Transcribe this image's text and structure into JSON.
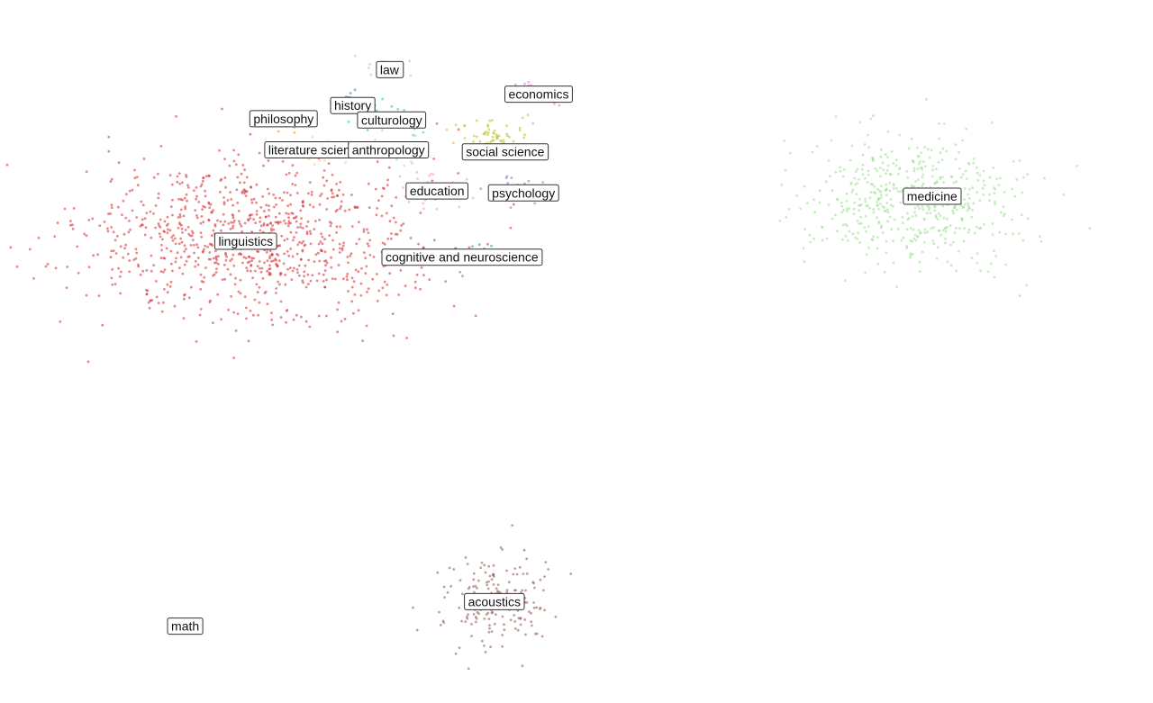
{
  "chart_data": {
    "type": "scatter",
    "title": "",
    "xlabel": "",
    "ylabel": "",
    "grid": false,
    "axes_visible": false,
    "legend": "none",
    "xlim": [
      0,
      100
    ],
    "ylim": [
      0,
      100
    ],
    "clusters": [
      {
        "label": "linguistics",
        "color": "#d62728",
        "center": [
          20.0,
          66.3
        ],
        "spread": [
          14.0,
          11.0
        ]
      },
      {
        "label": "medicine",
        "color": "#98df8a",
        "center": [
          81.0,
          73.0
        ],
        "spread": [
          9.0,
          9.5
        ]
      },
      {
        "label": "acoustics",
        "color": "#8c564b",
        "center": [
          42.5,
          12.0
        ],
        "spread": [
          4.5,
          7.0
        ]
      },
      {
        "label": "economics",
        "color": "#e377c2",
        "center": [
          46.5,
          88.5
        ],
        "spread": [
          2.5,
          2.0
        ]
      },
      {
        "label": "social science",
        "color": "#bcbd22",
        "center": [
          42.5,
          82.0
        ],
        "spread": [
          3.5,
          3.0
        ]
      },
      {
        "label": "psychology",
        "color": "#9467bd",
        "center": [
          45.0,
          74.5
        ],
        "spread": [
          2.5,
          2.0
        ]
      },
      {
        "label": "law",
        "color": "#c5b0d5",
        "center": [
          32.5,
          93.0
        ],
        "spread": [
          2.0,
          1.3
        ]
      },
      {
        "label": "history",
        "color": "#1f77b4",
        "center": [
          29.3,
          87.5
        ],
        "spread": [
          1.5,
          1.5
        ]
      },
      {
        "label": "culturology",
        "color": "#17becf",
        "center": [
          33.0,
          85.0
        ],
        "spread": [
          2.5,
          2.0
        ]
      },
      {
        "label": "philosophy",
        "color": "#ff7f0e",
        "center": [
          23.5,
          84.0
        ],
        "spread": [
          1.5,
          1.5
        ]
      },
      {
        "label": "anthropology",
        "color": "#aec7e8",
        "center": [
          33.0,
          80.5
        ],
        "spread": [
          2.5,
          2.0
        ]
      },
      {
        "label": "literature science",
        "color": "#ffbb78",
        "center": [
          26.0,
          80.0
        ],
        "spread": [
          2.0,
          2.0
        ]
      },
      {
        "label": "education",
        "color": "#ff9896",
        "center": [
          37.0,
          74.0
        ],
        "spread": [
          2.5,
          2.5
        ]
      },
      {
        "label": "cognitive and neuroscience",
        "color": "#2ca02c",
        "center": [
          39.5,
          64.0
        ],
        "spread": [
          2.5,
          2.0
        ]
      },
      {
        "label": "math",
        "color": "#7f7f7f",
        "center": [
          13.8,
          8.2
        ],
        "spread": [
          0.2,
          0.2
        ]
      }
    ],
    "labels": [
      {
        "text": "law",
        "x": 32.7,
        "y": 92.2
      },
      {
        "text": "economics",
        "x": 46.5,
        "y": 88.5
      },
      {
        "text": "history",
        "x": 29.3,
        "y": 86.8
      },
      {
        "text": "philosophy",
        "x": 22.9,
        "y": 84.8
      },
      {
        "text": "culturology",
        "x": 32.9,
        "y": 84.6
      },
      {
        "text": "literature science",
        "x": 25.9,
        "y": 80.1
      },
      {
        "text": "anthropology",
        "x": 32.6,
        "y": 80.1
      },
      {
        "text": "social science",
        "x": 43.4,
        "y": 79.8
      },
      {
        "text": "education",
        "x": 37.1,
        "y": 73.9
      },
      {
        "text": "psychology",
        "x": 45.1,
        "y": 73.6
      },
      {
        "text": "medicine",
        "x": 82.9,
        "y": 73.1
      },
      {
        "text": "linguistics",
        "x": 19.4,
        "y": 66.3
      },
      {
        "text": "cognitive and neuroscience",
        "x": 39.4,
        "y": 63.9
      },
      {
        "text": "acoustics",
        "x": 42.4,
        "y": 11.9
      },
      {
        "text": "math",
        "x": 13.8,
        "y": 8.2
      }
    ]
  }
}
